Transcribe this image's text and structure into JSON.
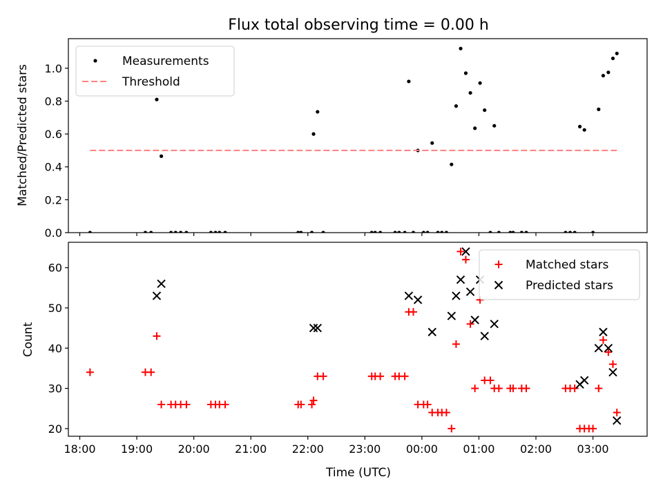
{
  "figure": {
    "title": "Flux total observing time = 0.00 h"
  },
  "chart_data": [
    {
      "type": "scatter",
      "title": "Flux total observing time = 0.00 h",
      "xlabel": "",
      "ylabel": "Matched/Predicted stars",
      "xlim_hours": [
        17.8,
        27.95
      ],
      "ylim": [
        0,
        1.18
      ],
      "yticks": [
        0.0,
        0.2,
        0.4,
        0.6,
        0.8,
        1.0
      ],
      "yticklabels": [
        "0.0",
        "0.2",
        "0.4",
        "0.6",
        "0.8",
        "1.0"
      ],
      "legend": {
        "position": "upper left",
        "entries": [
          "Measurements",
          "Threshold"
        ]
      },
      "series": [
        {
          "name": "Measurements",
          "marker": "dot",
          "color": "#000000",
          "points": [
            [
              18.18,
              0.0
            ],
            [
              19.15,
              0.0
            ],
            [
              19.25,
              0.0
            ],
            [
              19.35,
              0.81
            ],
            [
              19.43,
              0.465
            ],
            [
              19.6,
              0.0
            ],
            [
              19.68,
              0.0
            ],
            [
              19.77,
              0.0
            ],
            [
              19.87,
              0.0
            ],
            [
              20.3,
              0.0
            ],
            [
              20.38,
              0.0
            ],
            [
              20.45,
              0.0
            ],
            [
              20.55,
              0.0
            ],
            [
              21.83,
              0.0
            ],
            [
              21.88,
              0.0
            ],
            [
              22.07,
              0.0
            ],
            [
              22.1,
              0.6
            ],
            [
              22.17,
              0.735
            ],
            [
              22.27,
              0.0
            ],
            [
              23.12,
              0.0
            ],
            [
              23.18,
              0.0
            ],
            [
              23.27,
              0.0
            ],
            [
              23.53,
              0.0
            ],
            [
              23.6,
              0.0
            ],
            [
              23.7,
              0.0
            ],
            [
              23.77,
              0.92
            ],
            [
              23.85,
              0.0
            ],
            [
              23.93,
              0.5
            ],
            [
              24.03,
              0.0
            ],
            [
              24.1,
              0.0
            ],
            [
              24.18,
              0.545
            ],
            [
              24.28,
              0.0
            ],
            [
              24.35,
              0.0
            ],
            [
              24.43,
              0.0
            ],
            [
              24.52,
              0.415
            ],
            [
              24.6,
              0.77
            ],
            [
              24.68,
              1.12
            ],
            [
              24.77,
              0.97
            ],
            [
              24.85,
              0.85
            ],
            [
              24.93,
              0.635
            ],
            [
              25.02,
              0.91
            ],
            [
              25.1,
              0.745
            ],
            [
              25.2,
              0.0
            ],
            [
              25.27,
              0.65
            ],
            [
              25.35,
              0.0
            ],
            [
              25.55,
              0.0
            ],
            [
              25.6,
              0.0
            ],
            [
              25.75,
              0.0
            ],
            [
              25.83,
              0.0
            ],
            [
              26.52,
              0.0
            ],
            [
              26.6,
              0.0
            ],
            [
              26.68,
              0.0
            ],
            [
              26.77,
              0.645
            ],
            [
              26.85,
              0.625
            ],
            [
              27.0,
              0.0
            ],
            [
              27.1,
              0.75
            ],
            [
              27.18,
              0.955
            ],
            [
              27.27,
              0.975
            ],
            [
              27.35,
              1.06
            ],
            [
              27.42,
              1.09
            ]
          ]
        },
        {
          "name": "Threshold",
          "style": "dashed",
          "color": "#ff7f7f",
          "x_range_hours": [
            18.18,
            27.42
          ],
          "y": 0.5
        }
      ]
    },
    {
      "type": "scatter",
      "title": "",
      "xlabel": "Time (UTC)",
      "ylabel": "Count",
      "xlim_hours": [
        17.8,
        27.95
      ],
      "ylim": [
        18.1,
        66.3
      ],
      "yticks": [
        20,
        30,
        40,
        50,
        60
      ],
      "yticklabels": [
        "20",
        "30",
        "40",
        "50",
        "60"
      ],
      "xticks_hours": [
        18,
        19,
        20,
        21,
        22,
        23,
        24,
        25,
        26,
        27
      ],
      "xticklabels": [
        "18:00",
        "19:00",
        "20:00",
        "21:00",
        "22:00",
        "23:00",
        "00:00",
        "01:00",
        "02:00",
        "03:00"
      ],
      "legend": {
        "position": "upper right",
        "entries": [
          "Matched stars",
          "Predicted stars"
        ]
      },
      "series": [
        {
          "name": "Matched stars",
          "marker": "plus",
          "color": "#ff0000",
          "points": [
            [
              18.18,
              34
            ],
            [
              19.15,
              34
            ],
            [
              19.25,
              34
            ],
            [
              19.35,
              43
            ],
            [
              19.43,
              26
            ],
            [
              19.6,
              26
            ],
            [
              19.68,
              26
            ],
            [
              19.77,
              26
            ],
            [
              19.87,
              26
            ],
            [
              20.3,
              26
            ],
            [
              20.38,
              26
            ],
            [
              20.45,
              26
            ],
            [
              20.55,
              26
            ],
            [
              21.83,
              26
            ],
            [
              21.88,
              26
            ],
            [
              22.07,
              26
            ],
            [
              22.1,
              27
            ],
            [
              22.17,
              33
            ],
            [
              22.27,
              33
            ],
            [
              23.12,
              33
            ],
            [
              23.18,
              33
            ],
            [
              23.27,
              33
            ],
            [
              23.53,
              33
            ],
            [
              23.6,
              33
            ],
            [
              23.7,
              33
            ],
            [
              23.77,
              49
            ],
            [
              23.85,
              49
            ],
            [
              23.93,
              26
            ],
            [
              24.03,
              26
            ],
            [
              24.1,
              26
            ],
            [
              24.18,
              24
            ],
            [
              24.28,
              24
            ],
            [
              24.35,
              24
            ],
            [
              24.43,
              24
            ],
            [
              24.52,
              20
            ],
            [
              24.6,
              41
            ],
            [
              24.68,
              64
            ],
            [
              24.77,
              62
            ],
            [
              24.85,
              46
            ],
            [
              24.93,
              30
            ],
            [
              25.02,
              52
            ],
            [
              25.1,
              32
            ],
            [
              25.2,
              32
            ],
            [
              25.27,
              30
            ],
            [
              25.35,
              30
            ],
            [
              25.55,
              30
            ],
            [
              25.6,
              30
            ],
            [
              25.75,
              30
            ],
            [
              25.83,
              30
            ],
            [
              26.52,
              30
            ],
            [
              26.6,
              30
            ],
            [
              26.68,
              30
            ],
            [
              26.77,
              20
            ],
            [
              26.85,
              20
            ],
            [
              26.93,
              20
            ],
            [
              27.0,
              20
            ],
            [
              27.1,
              30
            ],
            [
              27.18,
              42
            ],
            [
              27.27,
              39
            ],
            [
              27.35,
              36
            ],
            [
              27.42,
              24
            ]
          ]
        },
        {
          "name": "Predicted stars",
          "marker": "x",
          "color": "#000000",
          "points": [
            [
              19.35,
              53
            ],
            [
              19.43,
              56
            ],
            [
              22.1,
              45
            ],
            [
              22.17,
              45
            ],
            [
              23.77,
              53
            ],
            [
              23.93,
              52
            ],
            [
              24.18,
              44
            ],
            [
              24.52,
              48
            ],
            [
              24.6,
              53
            ],
            [
              24.68,
              57
            ],
            [
              24.77,
              64
            ],
            [
              24.85,
              54
            ],
            [
              24.93,
              47
            ],
            [
              25.02,
              57
            ],
            [
              25.1,
              43
            ],
            [
              25.27,
              46
            ],
            [
              26.77,
              31
            ],
            [
              26.85,
              32
            ],
            [
              27.1,
              40
            ],
            [
              27.18,
              44
            ],
            [
              27.27,
              40
            ],
            [
              27.35,
              34
            ],
            [
              27.42,
              22
            ]
          ]
        }
      ]
    }
  ]
}
